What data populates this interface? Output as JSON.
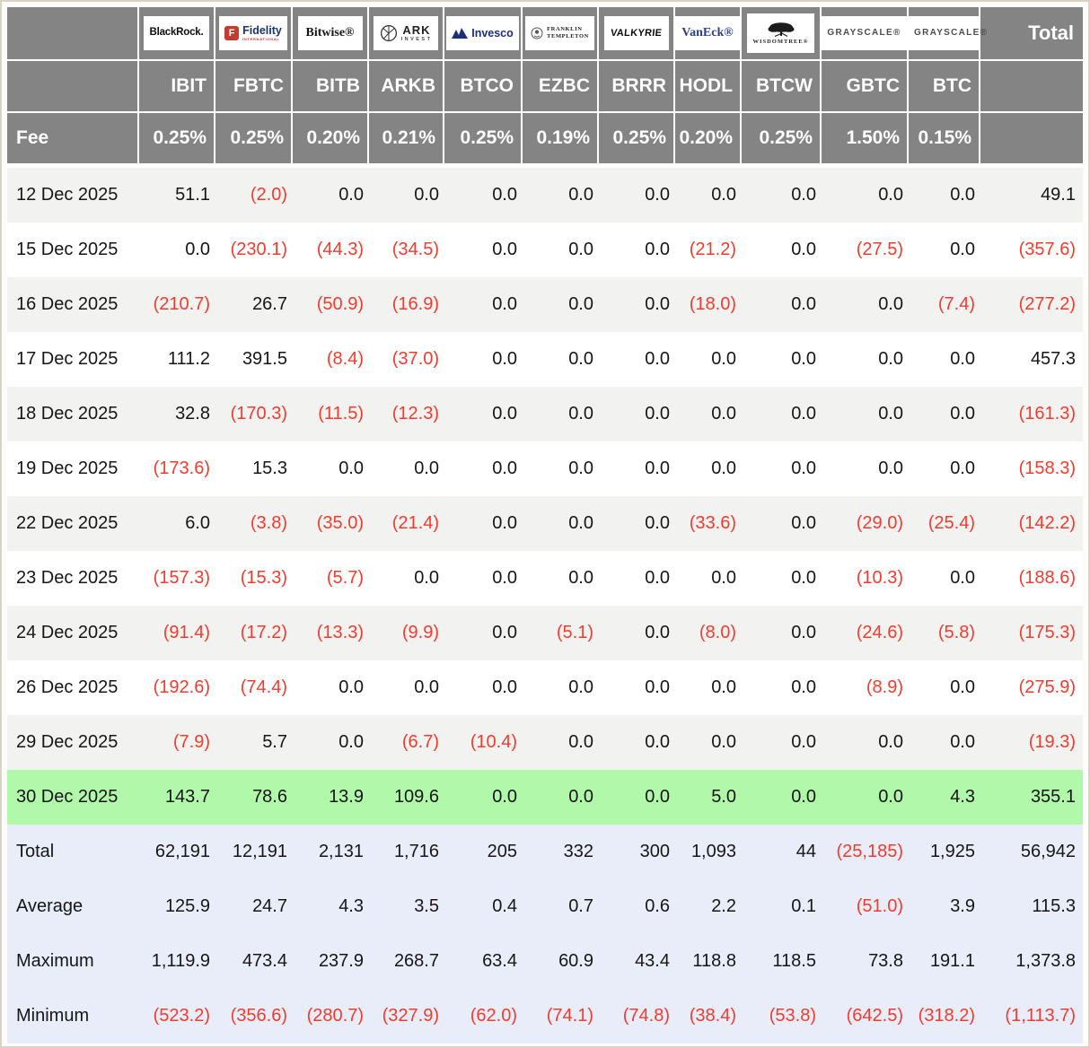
{
  "colors": {
    "negative": "#f43b2d",
    "header_bg": "#848484",
    "header_text": "#ffffff",
    "highlight_row": "#b1f8ab",
    "summary_row_bg": "#e9edf9",
    "stripe_row_bg": "#f2f2f1",
    "outer_border": "#d9d3c4",
    "body_text": "#161616"
  },
  "chart_data": {
    "type": "table",
    "fee_label": "Fee",
    "total_label": "Total",
    "columns": [
      {
        "issuer": "BlackRock",
        "ticker": "IBIT",
        "fee": "0.25%",
        "logo_lines": [
          "BlackRock."
        ],
        "icon": null,
        "icon_text": null
      },
      {
        "issuer": "Fidelity",
        "ticker": "FBTC",
        "fee": "0.25%",
        "logo_lines": [
          "Fidelity",
          "INTERNATIONAL"
        ],
        "icon": "fidelity-f-icon",
        "icon_text": "F"
      },
      {
        "issuer": "Bitwise",
        "ticker": "BITB",
        "fee": "0.20%",
        "logo_lines": [
          "Bitwise®"
        ],
        "icon": null,
        "icon_text": null
      },
      {
        "issuer": "ARK Invest",
        "ticker": "ARKB",
        "fee": "0.21%",
        "logo_lines": [
          "ARK",
          "INVEST"
        ],
        "icon": "ark-circle-icon",
        "icon_text": null
      },
      {
        "issuer": "Invesco",
        "ticker": "BTCO",
        "fee": "0.25%",
        "logo_lines": [
          "Invesco"
        ],
        "icon": "invesco-mountain-icon",
        "icon_text": null
      },
      {
        "issuer": "Franklin Templeton",
        "ticker": "EZBC",
        "fee": "0.19%",
        "logo_lines": [
          "FRANKLIN",
          "TEMPLETON"
        ],
        "icon": "franklin-emblem-icon",
        "icon_text": null
      },
      {
        "issuer": "Valkyrie",
        "ticker": "BRRR",
        "fee": "0.25%",
        "logo_lines": [
          "VALKYRIE"
        ],
        "icon": null,
        "icon_text": null
      },
      {
        "issuer": "VanEck",
        "ticker": "HODL",
        "fee": "0.20%",
        "logo_lines": [
          "VanEck®"
        ],
        "icon": null,
        "icon_text": null
      },
      {
        "issuer": "WisdomTree",
        "ticker": "BTCW",
        "fee": "0.25%",
        "logo_lines": [
          "WISDOMTREE®"
        ],
        "icon": "wisdomtree-tree-icon",
        "icon_text": null
      },
      {
        "issuer": "Grayscale",
        "ticker": "GBTC",
        "fee": "1.50%",
        "logo_lines": [
          "GRAYSCALE®"
        ],
        "icon": null,
        "icon_text": null
      },
      {
        "issuer": "Grayscale",
        "ticker": "BTC",
        "fee": "0.15%",
        "logo_lines": [
          "GRAYSCALE®"
        ],
        "icon": null,
        "icon_text": null
      }
    ],
    "rows": [
      {
        "date": "12 Dec 2025",
        "values": [
          "51.1",
          "(2.0)",
          "0.0",
          "0.0",
          "0.0",
          "0.0",
          "0.0",
          "0.0",
          "0.0",
          "0.0",
          "0.0"
        ],
        "total": "49.1",
        "highlight": false
      },
      {
        "date": "15 Dec 2025",
        "values": [
          "0.0",
          "(230.1)",
          "(44.3)",
          "(34.5)",
          "0.0",
          "0.0",
          "0.0",
          "(21.2)",
          "0.0",
          "(27.5)",
          "0.0"
        ],
        "total": "(357.6)",
        "highlight": false
      },
      {
        "date": "16 Dec 2025",
        "values": [
          "(210.7)",
          "26.7",
          "(50.9)",
          "(16.9)",
          "0.0",
          "0.0",
          "0.0",
          "(18.0)",
          "0.0",
          "0.0",
          "(7.4)"
        ],
        "total": "(277.2)",
        "highlight": false
      },
      {
        "date": "17 Dec 2025",
        "values": [
          "111.2",
          "391.5",
          "(8.4)",
          "(37.0)",
          "0.0",
          "0.0",
          "0.0",
          "0.0",
          "0.0",
          "0.0",
          "0.0"
        ],
        "total": "457.3",
        "highlight": false
      },
      {
        "date": "18 Dec 2025",
        "values": [
          "32.8",
          "(170.3)",
          "(11.5)",
          "(12.3)",
          "0.0",
          "0.0",
          "0.0",
          "0.0",
          "0.0",
          "0.0",
          "0.0"
        ],
        "total": "(161.3)",
        "highlight": false
      },
      {
        "date": "19 Dec 2025",
        "values": [
          "(173.6)",
          "15.3",
          "0.0",
          "0.0",
          "0.0",
          "0.0",
          "0.0",
          "0.0",
          "0.0",
          "0.0",
          "0.0"
        ],
        "total": "(158.3)",
        "highlight": false
      },
      {
        "date": "22 Dec 2025",
        "values": [
          "6.0",
          "(3.8)",
          "(35.0)",
          "(21.4)",
          "0.0",
          "0.0",
          "0.0",
          "(33.6)",
          "0.0",
          "(29.0)",
          "(25.4)"
        ],
        "total": "(142.2)",
        "highlight": false
      },
      {
        "date": "23 Dec 2025",
        "values": [
          "(157.3)",
          "(15.3)",
          "(5.7)",
          "0.0",
          "0.0",
          "0.0",
          "0.0",
          "0.0",
          "0.0",
          "(10.3)",
          "0.0"
        ],
        "total": "(188.6)",
        "highlight": false
      },
      {
        "date": "24 Dec 2025",
        "values": [
          "(91.4)",
          "(17.2)",
          "(13.3)",
          "(9.9)",
          "0.0",
          "(5.1)",
          "0.0",
          "(8.0)",
          "0.0",
          "(24.6)",
          "(5.8)"
        ],
        "total": "(175.3)",
        "highlight": false
      },
      {
        "date": "26 Dec 2025",
        "values": [
          "(192.6)",
          "(74.4)",
          "0.0",
          "0.0",
          "0.0",
          "0.0",
          "0.0",
          "0.0",
          "0.0",
          "(8.9)",
          "0.0"
        ],
        "total": "(275.9)",
        "highlight": false
      },
      {
        "date": "29 Dec 2025",
        "values": [
          "(7.9)",
          "5.7",
          "0.0",
          "(6.7)",
          "(10.4)",
          "0.0",
          "0.0",
          "0.0",
          "0.0",
          "0.0",
          "0.0"
        ],
        "total": "(19.3)",
        "highlight": false
      },
      {
        "date": "30 Dec 2025",
        "values": [
          "143.7",
          "78.6",
          "13.9",
          "109.6",
          "0.0",
          "0.0",
          "0.0",
          "5.0",
          "0.0",
          "0.0",
          "4.3"
        ],
        "total": "355.1",
        "highlight": true
      }
    ],
    "summary": [
      {
        "label": "Total",
        "values": [
          "62,191",
          "12,191",
          "2,131",
          "1,716",
          "205",
          "332",
          "300",
          "1,093",
          "44",
          "(25,185)",
          "1,925"
        ],
        "total": "56,942"
      },
      {
        "label": "Average",
        "values": [
          "125.9",
          "24.7",
          "4.3",
          "3.5",
          "0.4",
          "0.7",
          "0.6",
          "2.2",
          "0.1",
          "(51.0)",
          "3.9"
        ],
        "total": "115.3"
      },
      {
        "label": "Maximum",
        "values": [
          "1,119.9",
          "473.4",
          "237.9",
          "268.7",
          "63.4",
          "60.9",
          "43.4",
          "118.8",
          "118.5",
          "73.8",
          "191.1"
        ],
        "total": "1,373.8"
      },
      {
        "label": "Minimum",
        "values": [
          "(523.2)",
          "(356.6)",
          "(280.7)",
          "(327.9)",
          "(62.0)",
          "(74.1)",
          "(74.8)",
          "(38.4)",
          "(53.8)",
          "(642.5)",
          "(318.2)"
        ],
        "total": "(1,113.7)"
      }
    ]
  }
}
